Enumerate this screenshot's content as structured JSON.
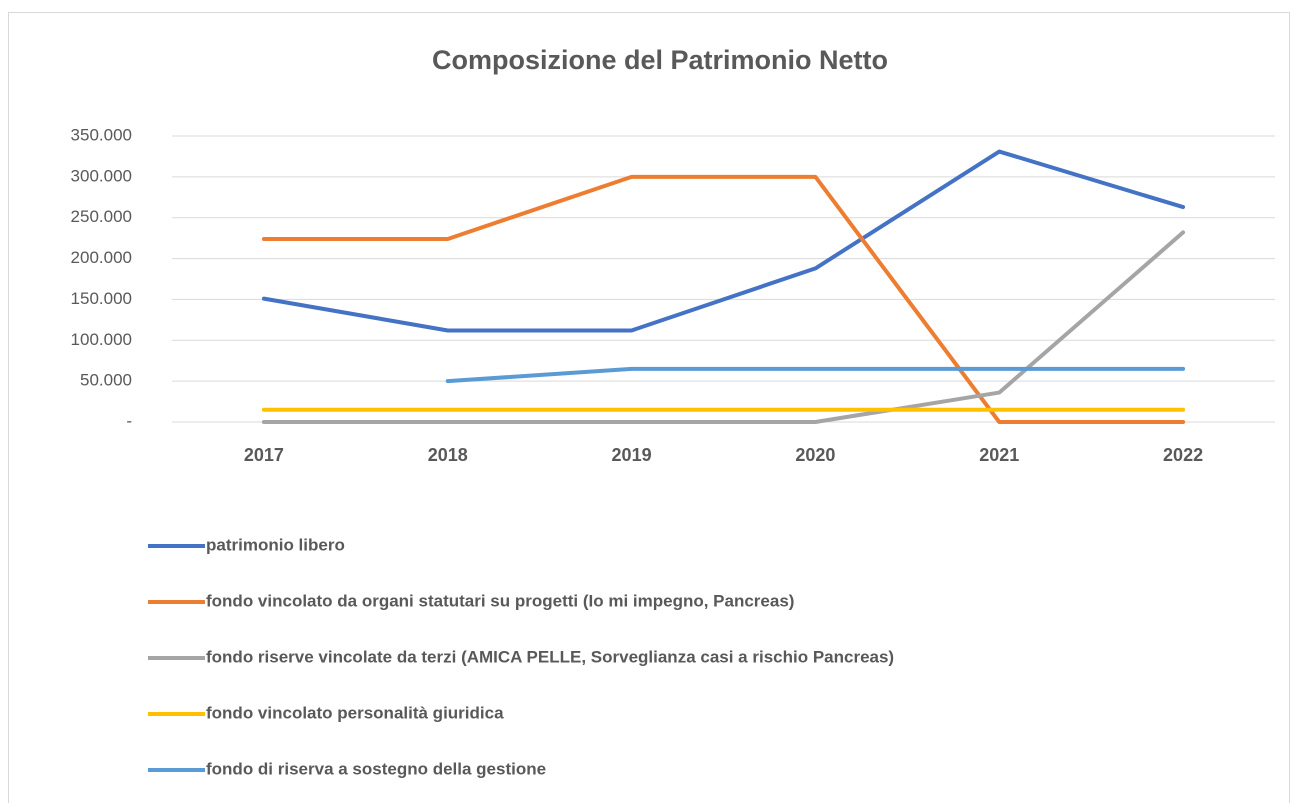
{
  "chart_data": {
    "type": "line",
    "title": "Composizione del Patrimonio Netto",
    "categories": [
      "2017",
      "2018",
      "2019",
      "2020",
      "2021",
      "2022"
    ],
    "series": [
      {
        "name": "patrimonio libero",
        "color": "#4472c4",
        "values": [
          151000,
          112000,
          112000,
          188000,
          331000,
          263000
        ]
      },
      {
        "name": "fondo vincolato da organi statutari su progetti (Io mi impegno, Pancreas)",
        "color": "#ed7d31",
        "values": [
          224000,
          224000,
          300000,
          300000,
          0,
          0
        ]
      },
      {
        "name": "fondo riserve vincolate da terzi (AMICA PELLE, Sorveglianza casi a rischio Pancreas)",
        "color": "#a5a5a5",
        "values": [
          0,
          0,
          0,
          0,
          36000,
          232000
        ]
      },
      {
        "name": "fondo vincolato personalità giuridica",
        "color": "#ffc000",
        "values": [
          15000,
          15000,
          15000,
          15000,
          15000,
          15000
        ]
      },
      {
        "name": "fondo di riserva a sostegno della gestione",
        "color": "#5b9bd5",
        "values": [
          null,
          50000,
          65000,
          65000,
          65000,
          65000
        ]
      }
    ],
    "ylim": [
      0,
      350000
    ],
    "yticks": [
      {
        "value": 0,
        "label": "-"
      },
      {
        "value": 50000,
        "label": "50.000"
      },
      {
        "value": 100000,
        "label": "100.000"
      },
      {
        "value": 150000,
        "label": "150.000"
      },
      {
        "value": 200000,
        "label": "200.000"
      },
      {
        "value": 250000,
        "label": "250.000"
      },
      {
        "value": 300000,
        "label": "300.000"
      },
      {
        "value": 350000,
        "label": "350.000"
      }
    ],
    "grid": true,
    "legend": "bottom"
  }
}
